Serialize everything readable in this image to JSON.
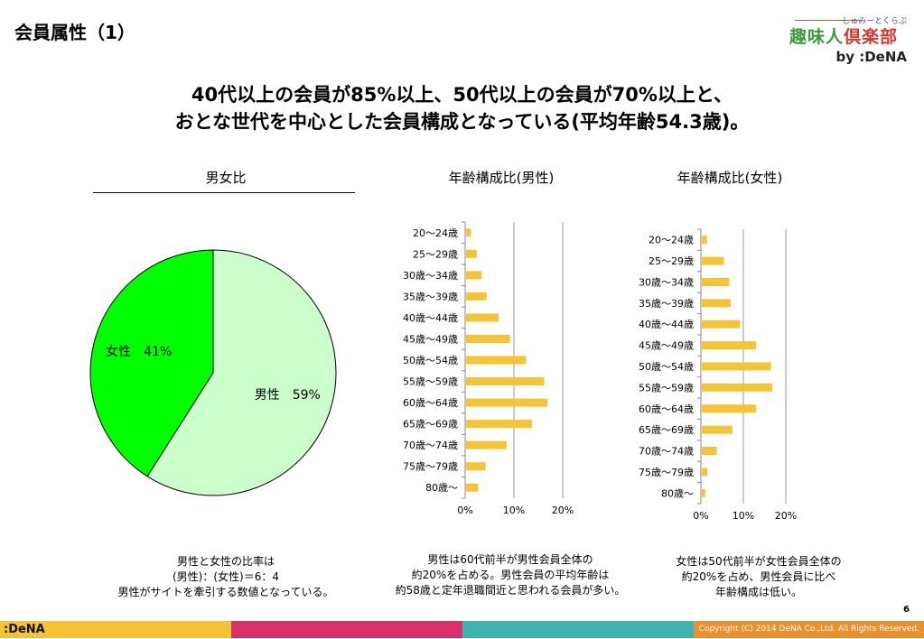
{
  "page_title": "会員属性（1）",
  "logo": {
    "kana": "しゅみーとくらぶ",
    "part1": "趣味人",
    "part2": "倶楽部",
    "by": "by :DeNA"
  },
  "headline": {
    "line1": "40代以上の会員が85%以上、50代以上の会員が70%以上と、",
    "line2": "おとな世代を中心とした会員構成となっている(平均年齢54.3歳)。"
  },
  "sections": {
    "gender_title": "男女比",
    "male_age_title": "年齢構成比(男性)",
    "female_age_title": "年齢構成比(女性)"
  },
  "captions": {
    "gender": [
      "男性と女性の比率は",
      "(男性)：(女性)＝6：4",
      "男性がサイトを牽引する数値となっている。"
    ],
    "male": [
      "男性は60代前半が男性会員全体の",
      "約20%を占める。男性会員の平均年齢は",
      "約58歳と定年退職間近と思われる会員が多い。"
    ],
    "female": [
      "女性は50代前半が女性会員全体の",
      "約20%を占め、男性会員に比べ",
      "年齢構成は低い。"
    ]
  },
  "footer": {
    "dena_logo": ":DeNA",
    "copyright": "Copyright (C) 2014 DeNA Co.,Ltd. All Rights Reserved.",
    "page_number": "6",
    "colors": [
      "#f5c436",
      "#d9306a",
      "#40b3ac",
      "#ec8f2f"
    ]
  },
  "colors": {
    "male_slice": "#ccffcc",
    "female_slice": "#00ff00",
    "bar": "#f5c436"
  },
  "chart_data": [
    {
      "type": "pie",
      "labels": [
        "男性",
        "女性"
      ],
      "values": [
        59,
        41
      ],
      "data_labels": [
        "男性　59%",
        "女性　41%"
      ]
    },
    {
      "type": "bar",
      "orientation": "horizontal",
      "categories": [
        "20〜24歳",
        "25〜29歳",
        "30歳〜34歳",
        "35歳〜39歳",
        "40歳〜44歳",
        "45歳〜49歳",
        "50歳〜54歳",
        "55歳〜59歳",
        "60歳〜64歳",
        "65歳〜69歳",
        "70歳〜74歳",
        "75歳〜79歳",
        "80歳〜"
      ],
      "values": [
        1.0,
        2.2,
        3.2,
        4.2,
        6.7,
        9.0,
        12.3,
        16.0,
        16.7,
        13.5,
        8.3,
        4.0,
        2.5
      ],
      "xlim": [
        0,
        20
      ],
      "xticks": [
        "0%",
        "10%",
        "20%"
      ],
      "grid": true
    },
    {
      "type": "bar",
      "orientation": "horizontal",
      "categories": [
        "20〜24歳",
        "25〜29歳",
        "30歳〜34歳",
        "35歳〜39歳",
        "40歳〜44歳",
        "45歳〜49歳",
        "50歳〜54歳",
        "55歳〜59歳",
        "60歳〜64歳",
        "65歳〜69歳",
        "70歳〜74歳",
        "75歳〜79歳",
        "80歳〜"
      ],
      "values": [
        1.2,
        5.2,
        6.5,
        6.8,
        9.0,
        12.8,
        16.3,
        16.6,
        12.8,
        7.2,
        3.5,
        1.3,
        0.8
      ],
      "xlim": [
        0,
        20
      ],
      "xticks": [
        "0%",
        "10%",
        "20%"
      ],
      "grid": true
    }
  ]
}
